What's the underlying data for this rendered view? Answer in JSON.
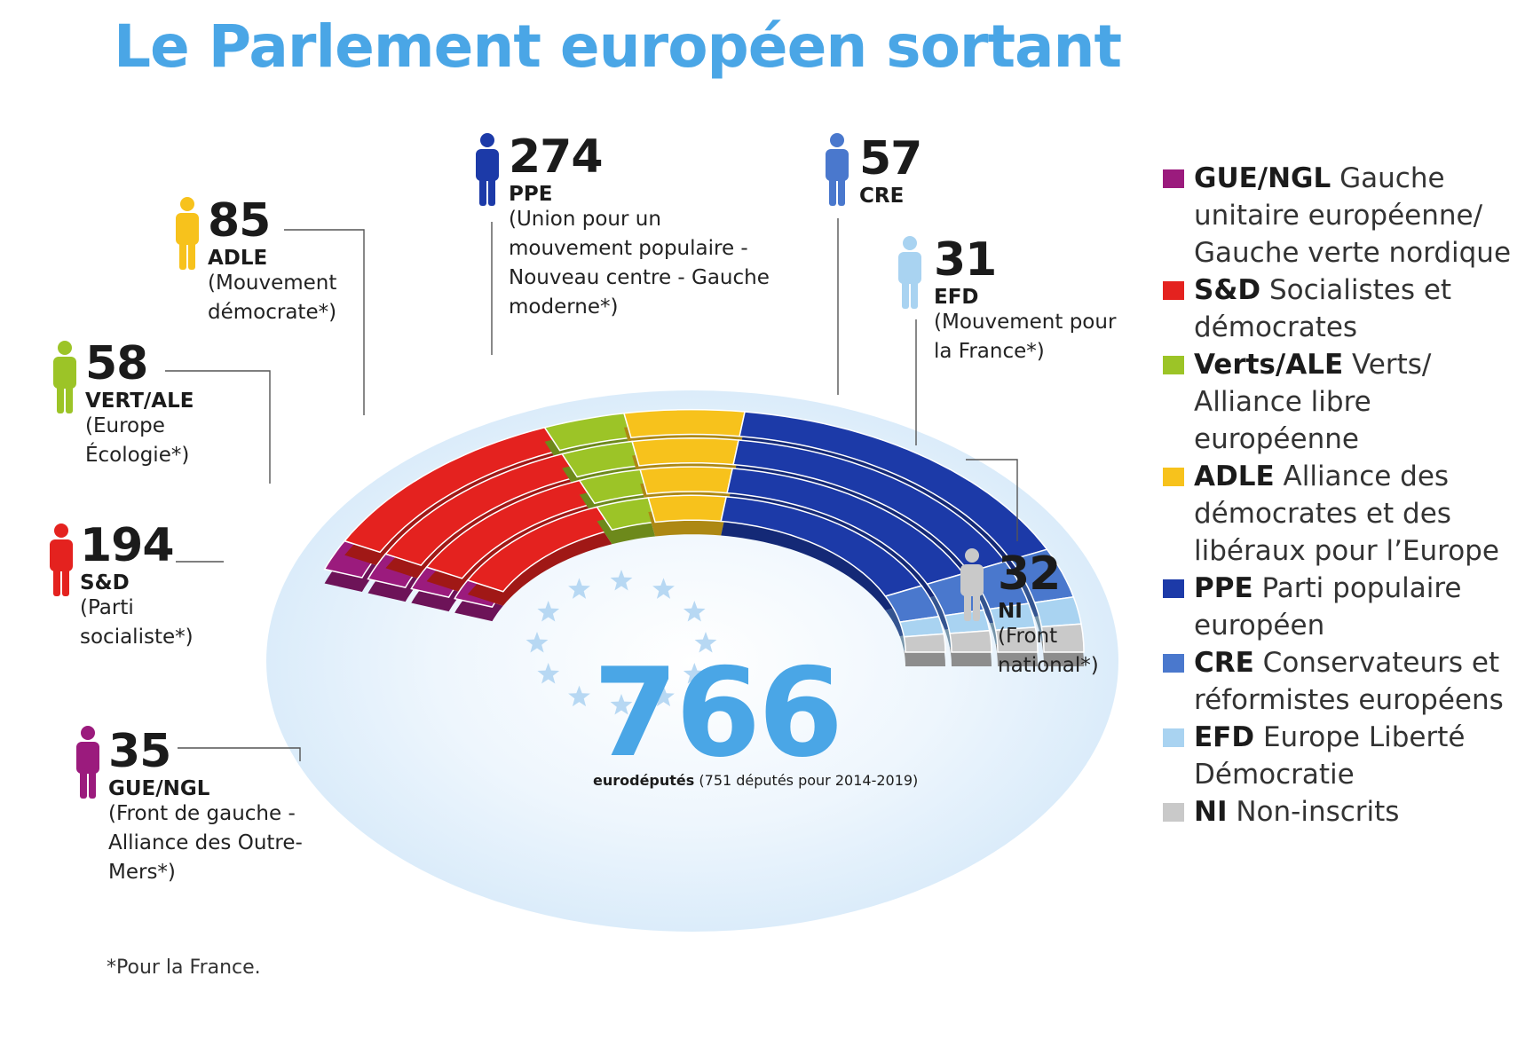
{
  "title": "Le Parlement européen sortant",
  "total": {
    "number": "766",
    "unit": "eurodéputés",
    "note": "(751 députés pour 2014-2019)"
  },
  "footnote": "*Pour la France.",
  "chart_data": {
    "type": "parliament",
    "total": 766,
    "series": [
      {
        "name": "GUE/NGL",
        "value": 35,
        "value_label": "35",
        "french_party": "(Front de gauche - Alliance des Outre-Mers*)",
        "color": "#9b1b7d"
      },
      {
        "name": "S&D",
        "value": 194,
        "value_label": "194",
        "french_party": "(Parti socialiste*)",
        "color": "#e4221f"
      },
      {
        "name": "VERT/ALE",
        "value": 58,
        "value_label": "58",
        "french_party": "(Europe Écologie*)",
        "color": "#9cc427"
      },
      {
        "name": "ADLE",
        "value": 85,
        "value_label": "85",
        "french_party": "(Mouvement démocrate*)",
        "color": "#f7c21c"
      },
      {
        "name": "PPE",
        "value": 274,
        "value_label": "274",
        "french_party": "(Union pour un mouvement populaire - Nouveau centre - Gauche moderne*)",
        "color": "#1c3aa8"
      },
      {
        "name": "CRE",
        "value": 57,
        "value_label": "57",
        "french_party": "",
        "color": "#4a78cd"
      },
      {
        "name": "EFD",
        "value": 31,
        "value_label": "31",
        "french_party": "(Mouvement pour la France*)",
        "color": "#a9d3f1"
      },
      {
        "name": "NI",
        "value": 32,
        "value_label": "32",
        "french_party": "(Front national*)",
        "color": "#c9c9c9"
      }
    ]
  },
  "legend": [
    {
      "abbr": "GUE/NGL",
      "text": "Gauche unitaire européenne/ Gauche verte nordique",
      "color": "#9b1b7d"
    },
    {
      "abbr": "S&D",
      "text": "Socialistes et démocrates",
      "color": "#e4221f"
    },
    {
      "abbr": "Verts/ALE",
      "text": "Verts/ Alliance libre européenne",
      "color": "#9cc427"
    },
    {
      "abbr": "ADLE",
      "text": "Alliance des démocrates et des libéraux pour l’Europe",
      "color": "#f7c21c"
    },
    {
      "abbr": "PPE",
      "text": "Parti populaire européen",
      "color": "#1c3aa8"
    },
    {
      "abbr": "CRE",
      "text": "Conservateurs et réformistes européens",
      "color": "#4a78cd"
    },
    {
      "abbr": "EFD",
      "text": "Europe Liberté Démocratie",
      "color": "#a9d3f1"
    },
    {
      "abbr": "NI",
      "text": "Non-inscrits",
      "color": "#c9c9c9"
    }
  ]
}
